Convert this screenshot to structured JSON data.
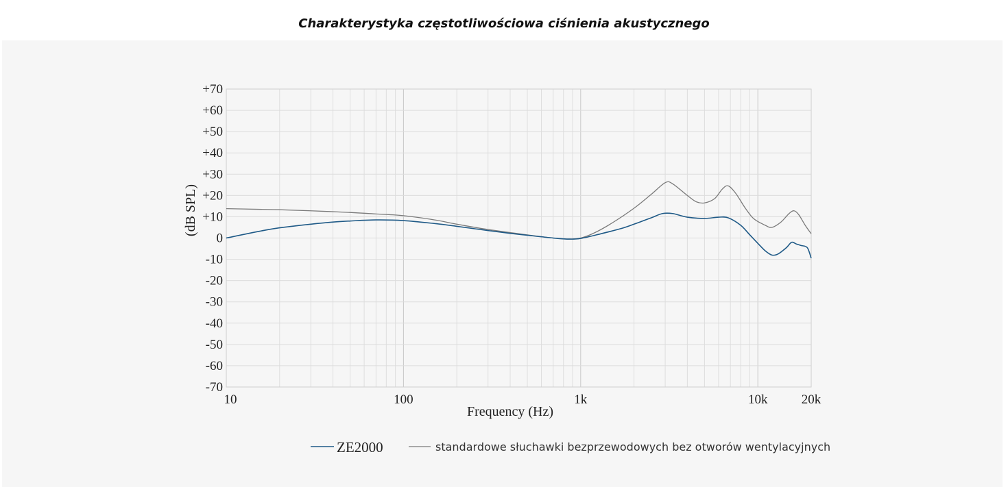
{
  "title": "Charakterystyka częstotliwościowa ciśnienia akustycznego",
  "chart_data": {
    "type": "line",
    "title": "Charakterystyka częstotliwościowa ciśnienia akustycznego",
    "xlabel": "Frequency (Hz)",
    "ylabel": "(dB SPL)",
    "x_scale": "log",
    "xlim": [
      10,
      20000
    ],
    "ylim": [
      -70,
      70
    ],
    "x_ticks": [
      {
        "value": 10,
        "label": "10"
      },
      {
        "value": 100,
        "label": "100"
      },
      {
        "value": 1000,
        "label": "1k"
      },
      {
        "value": 10000,
        "label": "10k"
      },
      {
        "value": 20000,
        "label": "20k"
      }
    ],
    "y_ticks": [
      {
        "value": 70,
        "label": "+70"
      },
      {
        "value": 60,
        "label": "+60"
      },
      {
        "value": 50,
        "label": "+50"
      },
      {
        "value": 40,
        "label": "+40"
      },
      {
        "value": 30,
        "label": "+30"
      },
      {
        "value": 20,
        "label": "+20"
      },
      {
        "value": 10,
        "label": "+10"
      },
      {
        "value": 0,
        "label": "0"
      },
      {
        "value": -10,
        "label": "-10"
      },
      {
        "value": -20,
        "label": "-20"
      },
      {
        "value": -30,
        "label": "-30"
      },
      {
        "value": -40,
        "label": "-40"
      },
      {
        "value": -50,
        "label": "-50"
      },
      {
        "value": -60,
        "label": "-60"
      },
      {
        "value": -70,
        "label": "-70"
      }
    ],
    "grid": true,
    "legend_position": "bottom-center",
    "series": [
      {
        "name": "ZE2000",
        "color": "#1f5a87",
        "points": [
          [
            10,
            0
          ],
          [
            15,
            3
          ],
          [
            20,
            4.8
          ],
          [
            30,
            6.5
          ],
          [
            40,
            7.5
          ],
          [
            50,
            8
          ],
          [
            70,
            8.5
          ],
          [
            100,
            8.2
          ],
          [
            150,
            6.8
          ],
          [
            200,
            5.5
          ],
          [
            300,
            3.5
          ],
          [
            400,
            2.2
          ],
          [
            500,
            1.3
          ],
          [
            700,
            0
          ],
          [
            850,
            -0.5
          ],
          [
            1000,
            -0.2
          ],
          [
            1300,
            2
          ],
          [
            1700,
            4.5
          ],
          [
            2000,
            6.5
          ],
          [
            2500,
            9.5
          ],
          [
            2900,
            11.5
          ],
          [
            3300,
            11.5
          ],
          [
            4000,
            9.8
          ],
          [
            5000,
            9.2
          ],
          [
            6000,
            9.8
          ],
          [
            6800,
            9.5
          ],
          [
            8000,
            6
          ],
          [
            9000,
            1.5
          ],
          [
            10000,
            -2.5
          ],
          [
            11000,
            -6
          ],
          [
            12000,
            -8
          ],
          [
            13000,
            -7.5
          ],
          [
            14500,
            -4.5
          ],
          [
            15500,
            -2
          ],
          [
            16500,
            -2.8
          ],
          [
            17500,
            -3.5
          ],
          [
            19000,
            -4.5
          ],
          [
            20000,
            -9.5
          ]
        ]
      },
      {
        "name": "standardowe słuchawki bezprzewodowych bez otworów wentylacyjnych",
        "color": "#7a7a7a",
        "points": [
          [
            10,
            13.8
          ],
          [
            15,
            13.5
          ],
          [
            20,
            13.3
          ],
          [
            30,
            12.8
          ],
          [
            50,
            12
          ],
          [
            70,
            11.3
          ],
          [
            100,
            10.5
          ],
          [
            150,
            8.5
          ],
          [
            200,
            6.5
          ],
          [
            300,
            4
          ],
          [
            500,
            1.5
          ],
          [
            700,
            0
          ],
          [
            850,
            -0.5
          ],
          [
            1000,
            0
          ],
          [
            1200,
            2.5
          ],
          [
            1500,
            7
          ],
          [
            2000,
            14
          ],
          [
            2500,
            20.5
          ],
          [
            3000,
            26
          ],
          [
            3300,
            25.5
          ],
          [
            4000,
            20
          ],
          [
            4500,
            17
          ],
          [
            5000,
            16.5
          ],
          [
            5700,
            18.5
          ],
          [
            6300,
            23
          ],
          [
            6800,
            24.5
          ],
          [
            7500,
            21
          ],
          [
            8500,
            14
          ],
          [
            9500,
            9
          ],
          [
            11000,
            6
          ],
          [
            12000,
            5
          ],
          [
            13500,
            7.5
          ],
          [
            15000,
            11.5
          ],
          [
            16000,
            12.8
          ],
          [
            17000,
            11
          ],
          [
            18500,
            6
          ],
          [
            20000,
            2
          ]
        ]
      }
    ]
  }
}
